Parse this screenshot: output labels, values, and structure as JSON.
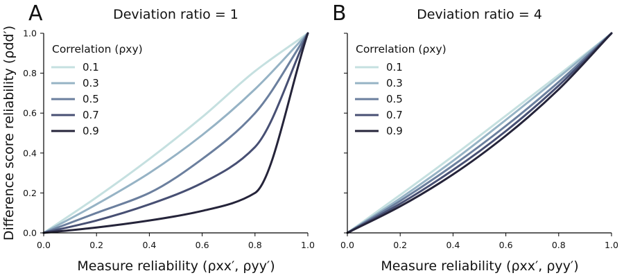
{
  "figure": {
    "ylabel": "Difference score reliability (ρdd′)",
    "xlabel": "Measure reliability (ρxx′, ρyy′)"
  },
  "chart_data": [
    {
      "type": "line",
      "panel_letter": "A",
      "title": "Deviation ratio = 1",
      "deviation_ratio": 1,
      "xlim": [
        0,
        1
      ],
      "ylim": [
        0,
        1
      ],
      "x_ticks": [
        "0.0",
        "0.2",
        "0.4",
        "0.6",
        "0.8",
        "1.0"
      ],
      "y_ticks": [
        "0.0",
        "0.2",
        "0.4",
        "0.6",
        "0.8",
        "1.0"
      ],
      "grid": false,
      "legend": {
        "title": "Correlation (ρxy)",
        "placement": "top-left",
        "entries": [
          "0.1",
          "0.3",
          "0.5",
          "0.7",
          "0.9"
        ]
      },
      "series": [
        {
          "name": "0.1",
          "correlation": 0.1,
          "color": "#c5e0e0",
          "x": [
            0,
            0.2,
            0.4,
            0.6,
            0.8,
            1.0
          ],
          "y": [
            0,
            0.178,
            0.37,
            0.58,
            0.81,
            1.0
          ]
        },
        {
          "name": "0.3",
          "correlation": 0.3,
          "color": "#96b3c5",
          "x": [
            0,
            0.2,
            0.4,
            0.6,
            0.8,
            1.0
          ],
          "y": [
            0,
            0.143,
            0.3,
            0.49,
            0.72,
            1.0
          ]
        },
        {
          "name": "0.5",
          "correlation": 0.5,
          "color": "#6b7f9e",
          "x": [
            0,
            0.2,
            0.4,
            0.6,
            0.8,
            1.0
          ],
          "y": [
            0,
            0.1,
            0.2,
            0.37,
            0.6,
            1.0
          ]
        },
        {
          "name": "0.7",
          "correlation": 0.7,
          "color": "#474f73",
          "x": [
            0,
            0.2,
            0.4,
            0.6,
            0.8,
            1.0
          ],
          "y": [
            0,
            0.062,
            0.143,
            0.25,
            0.43,
            1.0
          ]
        },
        {
          "name": "0.9",
          "correlation": 0.9,
          "color": "#25243a",
          "x": [
            0,
            0.2,
            0.4,
            0.6,
            0.8,
            1.0
          ],
          "y": [
            0,
            0.027,
            0.062,
            0.11,
            0.2,
            1.0
          ]
        }
      ]
    },
    {
      "type": "line",
      "panel_letter": "B",
      "title": "Deviation ratio = 4",
      "deviation_ratio": 4,
      "xlim": [
        0,
        1
      ],
      "ylim": [
        0,
        1
      ],
      "x_ticks": [
        "0.0",
        "0.2",
        "0.4",
        "0.6",
        "0.8",
        "1.0"
      ],
      "y_ticks": [],
      "grid": false,
      "legend": {
        "title": "Correlation (ρxy)",
        "placement": "top-left",
        "entries": [
          "0.1",
          "0.3",
          "0.5",
          "0.7",
          "0.9"
        ]
      },
      "series": [
        {
          "name": "0.1",
          "correlation": 0.1,
          "color": "#c5e0e0",
          "x": [
            0,
            0.2,
            0.4,
            0.6,
            0.8,
            1.0
          ],
          "y": [
            0,
            0.19,
            0.385,
            0.587,
            0.791,
            1.0
          ]
        },
        {
          "name": "0.3",
          "correlation": 0.3,
          "color": "#96b3c5",
          "x": [
            0,
            0.2,
            0.4,
            0.6,
            0.8,
            1.0
          ],
          "y": [
            0,
            0.173,
            0.361,
            0.566,
            0.779,
            1.0
          ]
        },
        {
          "name": "0.5",
          "correlation": 0.5,
          "color": "#6b7f9e",
          "x": [
            0,
            0.2,
            0.4,
            0.6,
            0.8,
            1.0
          ],
          "y": [
            0,
            0.16,
            0.338,
            0.536,
            0.756,
            1.0
          ]
        },
        {
          "name": "0.7",
          "correlation": 0.7,
          "color": "#474f73",
          "x": [
            0,
            0.2,
            0.4,
            0.6,
            0.8,
            1.0
          ],
          "y": [
            0,
            0.146,
            0.315,
            0.51,
            0.738,
            1.0
          ]
        },
        {
          "name": "0.9",
          "correlation": 0.9,
          "color": "#25243a",
          "x": [
            0,
            0.2,
            0.4,
            0.6,
            0.8,
            1.0
          ],
          "y": [
            0,
            0.133,
            0.293,
            0.487,
            0.719,
            1.0
          ]
        }
      ]
    }
  ]
}
